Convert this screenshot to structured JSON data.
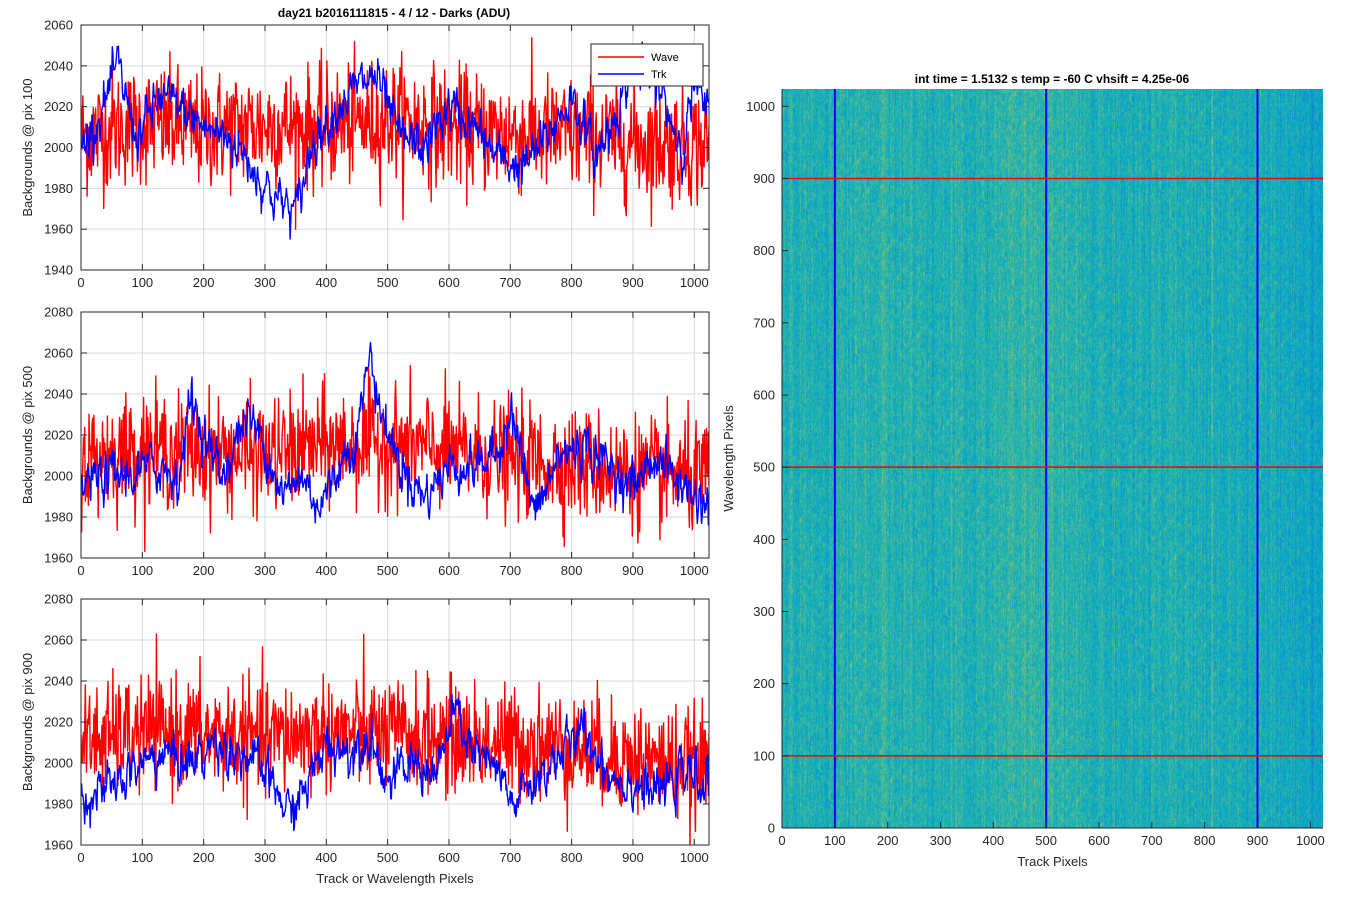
{
  "figure_title": "day21 b2016111815 - 4 / 12 - Darks (ADU)",
  "heatmap_title": "int time = 1.5132 s    temp = -60 C    vhsift = 4.25e-06",
  "colors": {
    "wave": "#ff0000",
    "trk": "#0000ff",
    "grid": "#d9d9d9",
    "axis": "#262626"
  },
  "chart_data": [
    {
      "type": "line",
      "ylabel": "Backgrounds @ pix 100",
      "xlabel": "",
      "xlim": [
        0,
        1024
      ],
      "ylim": [
        1940,
        2060
      ],
      "xticks": [
        0,
        100,
        200,
        300,
        400,
        500,
        600,
        700,
        800,
        900,
        1000
      ],
      "yticks": [
        1940,
        1960,
        1980,
        2000,
        2020,
        2040,
        2060
      ],
      "grid": true,
      "legend": "top-right",
      "series": [
        {
          "name": "Wave",
          "color": "#ff0000",
          "mean": 2010,
          "noise": 16,
          "x": [
            0,
            64,
            128,
            192,
            256,
            320,
            384,
            448,
            512,
            576,
            640,
            704,
            768,
            832,
            896,
            960,
            1024
          ],
          "y": [
            2005,
            2010,
            2012,
            2008,
            2010,
            2011,
            2009,
            2012,
            2014,
            2011,
            2008,
            2007,
            2006,
            2005,
            2003,
            2002,
            2001
          ]
        },
        {
          "name": "Trk",
          "color": "#0000ff",
          "mean": 2008,
          "noise": 6,
          "x": [
            0,
            30,
            60,
            90,
            130,
            160,
            200,
            240,
            270,
            290,
            320,
            350,
            380,
            420,
            450,
            480,
            520,
            560,
            600,
            640,
            680,
            720,
            760,
            800,
            840,
            870,
            900,
            940,
            980,
            1000,
            1024
          ],
          "y": [
            2000,
            2015,
            2040,
            2005,
            2025,
            2020,
            2010,
            2005,
            1995,
            1985,
            1975,
            1968,
            2005,
            2020,
            2030,
            2035,
            2005,
            2000,
            2020,
            2010,
            1995,
            1990,
            2005,
            2025,
            1995,
            2015,
            2040,
            2030,
            2000,
            2030,
            2015
          ]
        }
      ]
    },
    {
      "type": "line",
      "ylabel": "Backgrounds @ pix 500",
      "xlabel": "",
      "xlim": [
        0,
        1024
      ],
      "ylim": [
        1960,
        2080
      ],
      "xticks": [
        0,
        100,
        200,
        300,
        400,
        500,
        600,
        700,
        800,
        900,
        1000
      ],
      "yticks": [
        1960,
        1980,
        2000,
        2020,
        2040,
        2060,
        2080
      ],
      "grid": true,
      "series": [
        {
          "name": "Wave",
          "color": "#ff0000",
          "mean": 2012,
          "noise": 15,
          "x": [
            0,
            100,
            200,
            300,
            400,
            500,
            600,
            700,
            800,
            900,
            1024
          ],
          "y": [
            2008,
            2014,
            2012,
            2010,
            2015,
            2016,
            2012,
            2008,
            2006,
            2002,
            1998
          ]
        },
        {
          "name": "Trk",
          "color": "#0000ff",
          "mean": 2005,
          "noise": 6,
          "x": [
            0,
            40,
            80,
            120,
            160,
            180,
            200,
            230,
            270,
            300,
            330,
            360,
            390,
            420,
            450,
            470,
            490,
            520,
            560,
            600,
            640,
            680,
            700,
            740,
            780,
            820,
            860,
            900,
            940,
            980,
            1024
          ],
          "y": [
            1995,
            2000,
            2000,
            2005,
            2000,
            2040,
            2020,
            2000,
            2030,
            2015,
            1990,
            2000,
            1985,
            2005,
            2020,
            2060,
            2030,
            2005,
            1990,
            2005,
            2005,
            2010,
            2035,
            1980,
            2010,
            2015,
            2005,
            1995,
            2010,
            1995,
            1985
          ]
        }
      ]
    },
    {
      "type": "line",
      "ylabel": "Backgrounds @ pix 900",
      "xlabel": "Track or Wavelength Pixels",
      "xlim": [
        0,
        1024
      ],
      "ylim": [
        1960,
        2080
      ],
      "xticks": [
        0,
        100,
        200,
        300,
        400,
        500,
        600,
        700,
        800,
        900,
        1000
      ],
      "yticks": [
        1960,
        1980,
        2000,
        2020,
        2040,
        2060,
        2080
      ],
      "grid": true,
      "series": [
        {
          "name": "Wave",
          "color": "#ff0000",
          "mean": 2012,
          "noise": 15,
          "x": [
            0,
            100,
            200,
            300,
            400,
            500,
            600,
            700,
            800,
            900,
            1024
          ],
          "y": [
            2010,
            2015,
            2014,
            2012,
            2015,
            2014,
            2012,
            2010,
            2008,
            2002,
            1998
          ]
        },
        {
          "name": "Trk",
          "color": "#0000ff",
          "mean": 1998,
          "noise": 6,
          "x": [
            0,
            30,
            60,
            100,
            140,
            180,
            220,
            260,
            300,
            340,
            370,
            400,
            440,
            470,
            500,
            540,
            580,
            610,
            640,
            680,
            700,
            740,
            780,
            820,
            860,
            900,
            940,
            980,
            1024
          ],
          "y": [
            1985,
            1985,
            1990,
            2000,
            2005,
            2000,
            2010,
            2005,
            1995,
            1975,
            1990,
            2010,
            2005,
            2015,
            1990,
            2000,
            1995,
            2025,
            2005,
            1995,
            1980,
            1990,
            2005,
            2015,
            1995,
            1990,
            1985,
            1995,
            1990
          ]
        }
      ]
    },
    {
      "type": "heatmap",
      "xlabel": "Track Pixels",
      "ylabel": "Wavelength Pixels",
      "xlim": [
        0,
        1024
      ],
      "ylim": [
        0,
        1024
      ],
      "xticks": [
        0,
        100,
        200,
        300,
        400,
        500,
        600,
        700,
        800,
        900,
        1000
      ],
      "yticks": [
        0,
        100,
        200,
        300,
        400,
        500,
        600,
        700,
        800,
        900,
        1000
      ],
      "colormap": "parula",
      "marker_columns": [
        100,
        500,
        900
      ],
      "marker_rows": [
        100,
        500,
        900
      ],
      "marker_column_color": "#0000ff",
      "marker_row_color": "#ff0000"
    }
  ]
}
